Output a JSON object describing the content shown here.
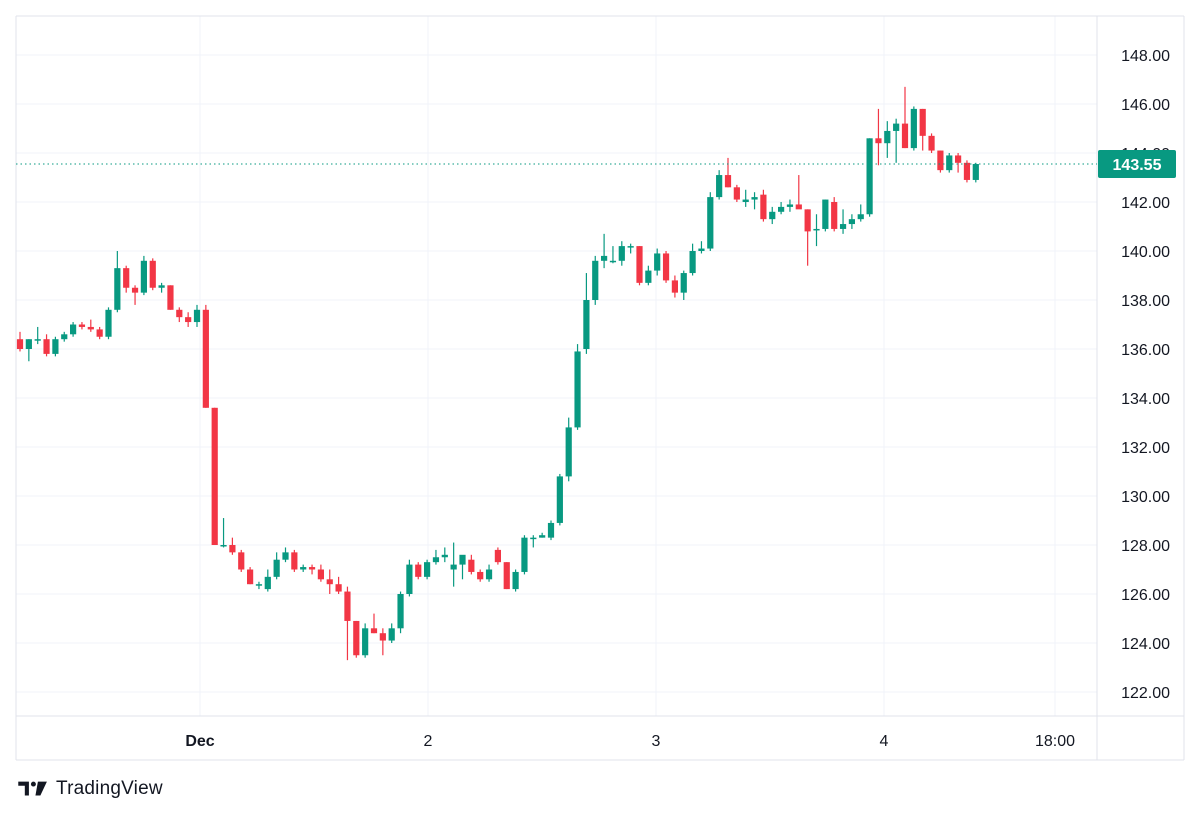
{
  "chart_data": {
    "type": "candlestick",
    "title": "",
    "xlabel": "",
    "ylabel": "",
    "ylim": [
      121,
      149.5
    ],
    "y_ticks": [
      "148.00",
      "146.00",
      "144.00",
      "142.00",
      "140.00",
      "138.00",
      "136.00",
      "134.00",
      "132.00",
      "130.00",
      "128.00",
      "126.00",
      "124.00",
      "122.00"
    ],
    "x_ticks": [
      "Dec",
      "2",
      "3",
      "4",
      "18:00"
    ],
    "last_price": "143.55",
    "grid": true,
    "colors": {
      "up": "#089981",
      "down": "#f23645",
      "grid": "#f0f3fa",
      "text": "#131722",
      "price_tag": "#089981"
    },
    "candles": [
      [
        136.4,
        136.7,
        135.9,
        136.0
      ],
      [
        136.0,
        136.4,
        135.5,
        136.4
      ],
      [
        136.4,
        136.9,
        136.2,
        136.4
      ],
      [
        136.4,
        136.6,
        135.7,
        135.8
      ],
      [
        135.8,
        136.5,
        135.7,
        136.4
      ],
      [
        136.4,
        136.7,
        136.3,
        136.6
      ],
      [
        136.6,
        137.1,
        136.5,
        137.0
      ],
      [
        137.0,
        137.1,
        136.8,
        136.9
      ],
      [
        136.9,
        137.2,
        136.7,
        136.8
      ],
      [
        136.8,
        136.9,
        136.4,
        136.5
      ],
      [
        136.5,
        137.7,
        136.4,
        137.6
      ],
      [
        137.6,
        140.0,
        137.5,
        139.3
      ],
      [
        139.3,
        139.4,
        138.3,
        138.5
      ],
      [
        138.5,
        138.6,
        137.8,
        138.3
      ],
      [
        138.3,
        139.8,
        138.2,
        139.6
      ],
      [
        139.6,
        139.7,
        138.4,
        138.5
      ],
      [
        138.5,
        138.7,
        138.3,
        138.6
      ],
      [
        138.6,
        138.6,
        137.6,
        137.6
      ],
      [
        137.6,
        137.7,
        137.1,
        137.3
      ],
      [
        137.3,
        137.5,
        136.9,
        137.1
      ],
      [
        137.1,
        137.8,
        136.9,
        137.6
      ],
      [
        137.6,
        137.8,
        133.6,
        133.6
      ],
      [
        133.6,
        133.6,
        128.0,
        128.0
      ],
      [
        128.0,
        129.1,
        127.9,
        128.0
      ],
      [
        128.0,
        128.3,
        127.6,
        127.7
      ],
      [
        127.7,
        127.8,
        126.9,
        127.0
      ],
      [
        127.0,
        127.1,
        126.4,
        126.4
      ],
      [
        126.4,
        126.5,
        126.2,
        126.4
      ],
      [
        126.2,
        127.0,
        126.1,
        126.7
      ],
      [
        126.7,
        127.7,
        126.6,
        127.4
      ],
      [
        127.4,
        127.9,
        127.3,
        127.7
      ],
      [
        127.7,
        127.8,
        126.9,
        127.0
      ],
      [
        127.0,
        127.2,
        126.9,
        127.1
      ],
      [
        127.1,
        127.2,
        126.8,
        127.0
      ],
      [
        127.0,
        127.2,
        126.5,
        126.6
      ],
      [
        126.6,
        127.0,
        126.0,
        126.4
      ],
      [
        126.4,
        126.7,
        126.0,
        126.1
      ],
      [
        126.1,
        126.3,
        123.3,
        124.9
      ],
      [
        124.9,
        124.9,
        123.4,
        123.5
      ],
      [
        123.5,
        124.8,
        123.4,
        124.6
      ],
      [
        124.6,
        125.2,
        124.4,
        124.4
      ],
      [
        124.4,
        124.6,
        123.5,
        124.1
      ],
      [
        124.1,
        124.8,
        124.0,
        124.6
      ],
      [
        124.6,
        126.1,
        124.4,
        126.0
      ],
      [
        126.0,
        127.4,
        125.9,
        127.2
      ],
      [
        127.2,
        127.3,
        126.6,
        126.7
      ],
      [
        126.7,
        127.4,
        126.6,
        127.3
      ],
      [
        127.3,
        127.8,
        127.2,
        127.5
      ],
      [
        127.5,
        127.9,
        127.3,
        127.6
      ],
      [
        127.0,
        128.1,
        126.3,
        127.2
      ],
      [
        127.2,
        127.5,
        126.6,
        127.6
      ],
      [
        127.4,
        127.6,
        126.8,
        126.9
      ],
      [
        126.9,
        127.0,
        126.5,
        126.6
      ],
      [
        126.6,
        127.2,
        126.5,
        127.0
      ],
      [
        127.8,
        127.9,
        127.2,
        127.3
      ],
      [
        127.3,
        127.3,
        126.2,
        126.2
      ],
      [
        126.2,
        127.0,
        126.1,
        126.9
      ],
      [
        126.9,
        128.4,
        126.8,
        128.3
      ],
      [
        128.3,
        128.4,
        127.9,
        128.3
      ],
      [
        128.3,
        128.5,
        128.3,
        128.4
      ],
      [
        128.3,
        129.0,
        128.2,
        128.9
      ],
      [
        128.9,
        130.9,
        128.8,
        130.8
      ],
      [
        130.8,
        133.2,
        130.6,
        132.8
      ],
      [
        132.8,
        136.2,
        132.7,
        135.9
      ],
      [
        136.0,
        139.1,
        135.8,
        138.0
      ],
      [
        138.0,
        139.8,
        137.8,
        139.6
      ],
      [
        139.6,
        140.7,
        139.3,
        139.8
      ],
      [
        139.6,
        140.2,
        139.5,
        139.6
      ],
      [
        139.6,
        140.4,
        139.4,
        140.2
      ],
      [
        140.2,
        140.3,
        139.9,
        140.2
      ],
      [
        140.2,
        140.2,
        138.6,
        138.7
      ],
      [
        138.7,
        139.4,
        138.6,
        139.2
      ],
      [
        139.2,
        140.1,
        139.0,
        139.9
      ],
      [
        139.9,
        140.0,
        138.7,
        138.8
      ],
      [
        138.8,
        139.0,
        138.1,
        138.3
      ],
      [
        138.3,
        139.2,
        138.0,
        139.1
      ],
      [
        139.1,
        140.3,
        139.0,
        140.0
      ],
      [
        140.0,
        140.4,
        139.9,
        140.1
      ],
      [
        140.1,
        142.4,
        140.0,
        142.2
      ],
      [
        142.2,
        143.3,
        142.1,
        143.1
      ],
      [
        143.1,
        143.8,
        142.6,
        142.6
      ],
      [
        142.6,
        142.7,
        142.0,
        142.1
      ],
      [
        142.0,
        142.5,
        141.8,
        142.1
      ],
      [
        142.1,
        142.4,
        141.7,
        142.2
      ],
      [
        142.3,
        142.5,
        141.2,
        141.3
      ],
      [
        141.3,
        141.8,
        141.1,
        141.6
      ],
      [
        141.6,
        142.0,
        141.5,
        141.8
      ],
      [
        141.8,
        142.1,
        141.6,
        141.9
      ],
      [
        141.9,
        143.1,
        141.8,
        141.7
      ],
      [
        141.7,
        141.7,
        139.4,
        140.8
      ],
      [
        140.9,
        141.5,
        140.2,
        140.9
      ],
      [
        140.9,
        142.1,
        140.8,
        142.1
      ],
      [
        142.0,
        142.2,
        140.8,
        140.9
      ],
      [
        140.9,
        141.7,
        140.7,
        141.1
      ],
      [
        141.1,
        141.5,
        140.9,
        141.3
      ],
      [
        141.3,
        141.9,
        141.2,
        141.5
      ],
      [
        141.5,
        144.6,
        141.4,
        144.6
      ],
      [
        144.6,
        145.8,
        143.5,
        144.4
      ],
      [
        144.4,
        145.3,
        143.8,
        144.9
      ],
      [
        144.9,
        145.4,
        143.6,
        145.2
      ],
      [
        145.2,
        146.7,
        144.2,
        144.2
      ],
      [
        144.2,
        145.9,
        144.1,
        145.8
      ],
      [
        145.8,
        145.8,
        144.1,
        144.7
      ],
      [
        144.7,
        144.8,
        144.0,
        144.1
      ],
      [
        144.1,
        144.1,
        143.2,
        143.3
      ],
      [
        143.3,
        144.0,
        143.2,
        143.9
      ],
      [
        143.9,
        144.0,
        143.2,
        143.6
      ],
      [
        143.6,
        143.7,
        142.8,
        142.9
      ],
      [
        142.9,
        143.6,
        142.8,
        143.55
      ]
    ]
  },
  "brand": {
    "logo_icon": "tradingview-logo-icon",
    "name": "TradingView"
  }
}
